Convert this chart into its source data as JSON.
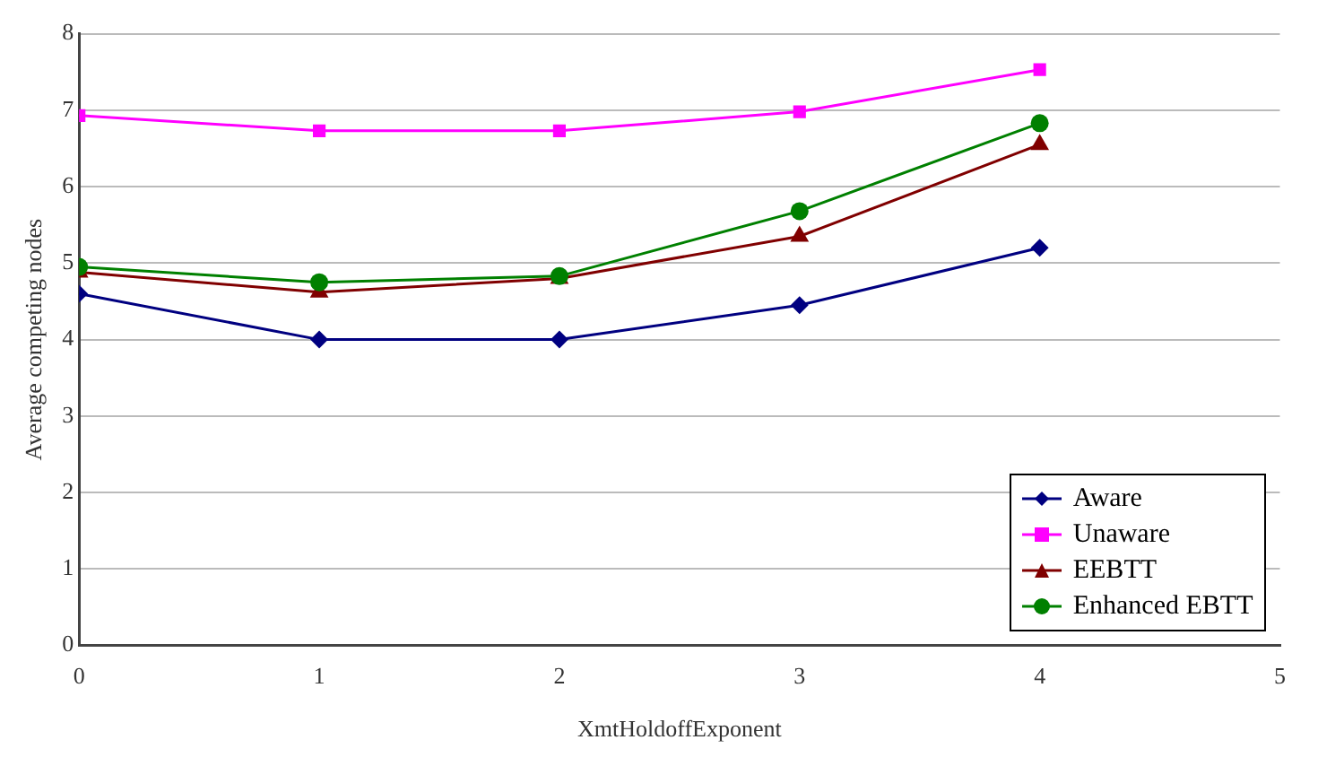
{
  "chart_data": {
    "type": "line",
    "xlabel": "XmtHoldoffExponent",
    "ylabel": "Average competing nodes",
    "x": [
      0,
      1,
      2,
      3,
      4
    ],
    "xlim": [
      0,
      5
    ],
    "xticks": [
      0,
      1,
      2,
      3,
      4,
      5
    ],
    "ylim": [
      0,
      8
    ],
    "yticks": [
      0,
      1,
      2,
      3,
      4,
      5,
      6,
      7,
      8
    ],
    "grid": "y",
    "legend": "bottom right",
    "series": [
      {
        "name": "Aware",
        "color": "#000080",
        "marker": "diamond",
        "values": [
          4.6,
          4.0,
          4.0,
          4.45,
          5.2
        ]
      },
      {
        "name": "Unaware",
        "color": "#ff00ff",
        "marker": "square",
        "values": [
          6.93,
          6.73,
          6.73,
          6.98,
          7.53
        ]
      },
      {
        "name": "EEBTT",
        "color": "#800000",
        "marker": "triangle",
        "values": [
          4.88,
          4.62,
          4.8,
          5.35,
          6.55
        ]
      },
      {
        "name": "Enhanced EBTT",
        "color": "#008000",
        "marker": "circle",
        "values": [
          4.95,
          4.75,
          4.83,
          5.68,
          6.83
        ]
      }
    ]
  }
}
